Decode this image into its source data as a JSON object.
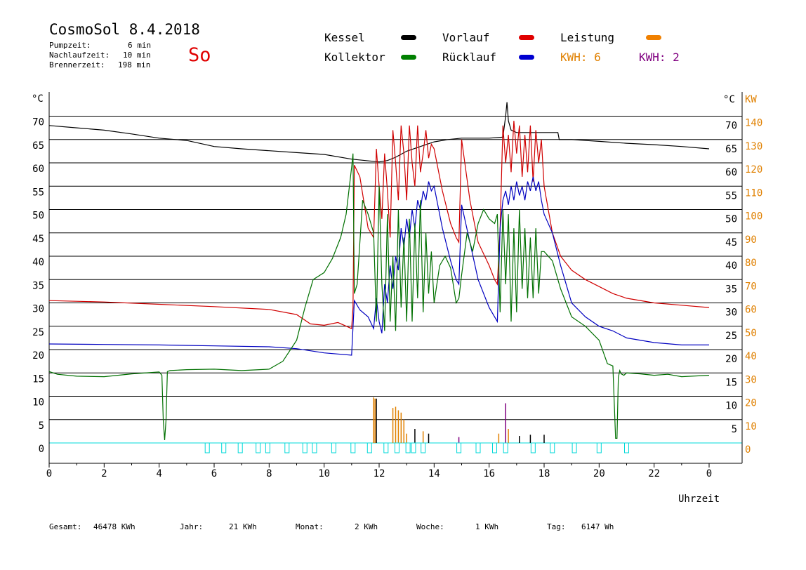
{
  "header": {
    "title": "CosmoSol 8.4.2018",
    "day": "So",
    "pump_label": "Pumpzeit:",
    "pump_value": "6 min",
    "nach_label": "Nachlaufzeit:",
    "nach_value": "10 min",
    "brenner_label": "Brennerzeit:",
    "brenner_value": "198 min"
  },
  "legend": {
    "kessel": {
      "label": "Kessel",
      "color": "#000000"
    },
    "vorlauf": {
      "label": "Vorlauf",
      "color": "#e00000"
    },
    "leistung": {
      "label": "Leistung",
      "color": "#f08000"
    },
    "kollektor": {
      "label": "Kollektor",
      "color": "#008000"
    },
    "ruecklauf": {
      "label": "Rücklauf",
      "color": "#0000d0"
    },
    "kwh1": {
      "label": "KWH: 6",
      "color": "#e08000"
    },
    "kwh2": {
      "label": "KWH: 2",
      "color": "#800080"
    }
  },
  "footer": {
    "gesamt_label": "Gesamt:",
    "gesamt_value": "46478 KWh",
    "jahr_label": "Jahr:",
    "jahr_value": "21 KWh",
    "monat_label": "Monat:",
    "monat_value": "2 KWh",
    "woche_label": "Woche:",
    "woche_value": "1 KWh",
    "tag_label": "Tag:",
    "tag_value": "6147 Wh"
  },
  "chart_data": {
    "type": "line",
    "xlabel": "Uhrzeit",
    "ylabel_left": "°C",
    "ylabel_right_1": "°C",
    "ylabel_right_2": "KW",
    "xlim": [
      0,
      24
    ],
    "ylim": [
      0,
      70
    ],
    "grid": true,
    "x_ticks": [
      "0",
      "2",
      "4",
      "6",
      "8",
      "10",
      "12",
      "14",
      "16",
      "18",
      "20",
      "22",
      "0"
    ],
    "y_ticks_left": [
      "70",
      "65",
      "60",
      "55",
      "50",
      "45",
      "40",
      "35",
      "30",
      "25",
      "20",
      "15",
      "10",
      "5",
      "0"
    ],
    "y_ticks_right_c": [
      "70",
      "65",
      "60",
      "55",
      "50",
      "45",
      "40",
      "35",
      "30",
      "25",
      "20",
      "15",
      "10",
      "5"
    ],
    "y_ticks_right_kw": [
      "140",
      "130",
      "120",
      "110",
      "100",
      "90",
      "80",
      "70",
      "60",
      "50",
      "40",
      "30",
      "20",
      "10",
      "0"
    ],
    "series": [
      {
        "name": "Kessel",
        "color": "#000000",
        "x": [
          0,
          1,
          2,
          3,
          4,
          5,
          6,
          7,
          8,
          9,
          10,
          11,
          11.5,
          12,
          12.3,
          12.6,
          13,
          13.5,
          14,
          14.5,
          15,
          16,
          16.5,
          16.6,
          16.65,
          16.7,
          16.8,
          17,
          18,
          18.5,
          18.55,
          19,
          20,
          21,
          22,
          23,
          24
        ],
        "y": [
          68,
          67.5,
          67,
          66.2,
          65.3,
          64.8,
          63.5,
          63,
          62.6,
          62.2,
          61.8,
          60.8,
          60.5,
          60.2,
          60.5,
          61.2,
          62.5,
          63.5,
          64.5,
          65,
          65.3,
          65.3,
          65.5,
          70,
          73,
          69,
          67,
          66.5,
          66.5,
          66.5,
          65,
          65,
          64.6,
          64.2,
          63.9,
          63.5,
          63
        ]
      },
      {
        "name": "Vorlauf",
        "color": "#d00000",
        "x": [
          0,
          2,
          4,
          6,
          8,
          9,
          9.5,
          10,
          10.5,
          11,
          11.05,
          11.1,
          11.3,
          11.6,
          11.8,
          11.9,
          12,
          12.1,
          12.2,
          12.3,
          12.4,
          12.5,
          12.6,
          12.7,
          12.8,
          12.9,
          13,
          13.1,
          13.2,
          13.3,
          13.4,
          13.5,
          13.6,
          13.7,
          13.8,
          13.9,
          14,
          14.3,
          14.6,
          14.8,
          14.9,
          15,
          15.3,
          15.6,
          16,
          16.2,
          16.3,
          16.4,
          16.5,
          16.6,
          16.7,
          16.8,
          16.9,
          17,
          17.1,
          17.2,
          17.3,
          17.4,
          17.5,
          17.6,
          17.7,
          17.8,
          17.9,
          18,
          18.3,
          18.6,
          19,
          19.5,
          20,
          20.5,
          21,
          22,
          23,
          24
        ],
        "y": [
          30.5,
          30.2,
          29.7,
          29.2,
          28.6,
          27.5,
          25.5,
          25.2,
          25.8,
          24.5,
          29,
          59.5,
          57,
          46,
          44,
          63,
          55,
          48,
          62,
          54,
          44,
          67,
          60,
          52,
          68,
          62,
          52,
          68,
          60,
          55,
          68,
          58,
          62,
          67,
          61,
          64,
          63,
          54,
          47,
          44,
          43,
          65,
          52,
          43,
          38,
          35,
          34,
          46,
          68,
          60,
          66,
          58,
          69,
          62,
          68,
          57,
          66,
          58,
          68,
          56,
          67,
          60,
          65,
          55,
          45,
          40,
          37,
          35,
          33.5,
          32,
          31,
          30,
          29.5,
          29
        ]
      },
      {
        "name": "Rücklauf",
        "color": "#0000c0",
        "x": [
          0,
          2,
          4,
          6,
          8,
          9,
          10,
          11,
          11.1,
          11.3,
          11.6,
          11.8,
          11.9,
          12,
          12.1,
          12.2,
          12.3,
          12.4,
          12.5,
          12.6,
          12.7,
          12.8,
          12.9,
          13,
          13.1,
          13.2,
          13.3,
          13.4,
          13.5,
          13.6,
          13.7,
          13.8,
          13.9,
          14,
          14.3,
          14.6,
          14.8,
          14.9,
          15,
          15.3,
          15.6,
          16,
          16.2,
          16.3,
          16.4,
          16.5,
          16.6,
          16.7,
          16.8,
          16.9,
          17,
          17.1,
          17.2,
          17.3,
          17.4,
          17.5,
          17.6,
          17.7,
          17.8,
          17.9,
          18,
          18.3,
          18.6,
          19,
          19.5,
          20,
          20.5,
          21,
          22,
          23,
          24
        ],
        "y": [
          21.2,
          21.1,
          21,
          20.8,
          20.6,
          20.2,
          19.3,
          18.8,
          30.5,
          28.5,
          27,
          24.5,
          31,
          26,
          23.5,
          34,
          30,
          38,
          33,
          40,
          37,
          46,
          42,
          48,
          44,
          50,
          46,
          52,
          50,
          54,
          52,
          56,
          54,
          55,
          46,
          39,
          35,
          34,
          51,
          43,
          35,
          29,
          27,
          26,
          46,
          52,
          54,
          51,
          55,
          52,
          56,
          53,
          55,
          52,
          56,
          54,
          57,
          54,
          56,
          52,
          49,
          45,
          38,
          30,
          27,
          25,
          24,
          22.5,
          21.5,
          21,
          21
        ]
      },
      {
        "name": "Kollektor",
        "color": "#007000",
        "x": [
          0,
          0.3,
          1,
          2,
          3,
          4,
          4.1,
          4.15,
          4.2,
          4.25,
          4.3,
          4.4,
          5,
          6,
          7,
          8,
          8.5,
          9,
          9.3,
          9.6,
          10,
          10.3,
          10.6,
          10.8,
          11,
          11.05,
          11.1,
          11.2,
          11.4,
          11.6,
          11.8,
          11.9,
          12,
          12.1,
          12.2,
          12.3,
          12.4,
          12.5,
          12.6,
          12.7,
          12.8,
          12.9,
          13,
          13.1,
          13.2,
          13.3,
          13.4,
          13.5,
          13.6,
          13.7,
          13.8,
          13.9,
          14,
          14.2,
          14.4,
          14.6,
          14.8,
          14.9,
          15,
          15.2,
          15.4,
          15.6,
          15.8,
          16,
          16.2,
          16.3,
          16.4,
          16.5,
          16.6,
          16.7,
          16.8,
          16.9,
          17,
          17.1,
          17.2,
          17.3,
          17.4,
          17.5,
          17.6,
          17.7,
          17.8,
          17.9,
          18,
          18.3,
          18.6,
          19,
          19.5,
          20,
          20.3,
          20.5,
          20.6,
          20.65,
          20.7,
          20.75,
          20.8,
          20.9,
          21,
          21.5,
          22,
          22.5,
          23,
          24
        ],
        "y": [
          15.3,
          14.7,
          14.3,
          14.2,
          14.8,
          15.2,
          14.5,
          5,
          0.6,
          5,
          15.3,
          15.5,
          15.7,
          15.8,
          15.5,
          15.8,
          17.5,
          22,
          29,
          35,
          36.5,
          39.5,
          44,
          49,
          59,
          62,
          32,
          34,
          52,
          49,
          45,
          26,
          55,
          34,
          24,
          49,
          26,
          40,
          24,
          50,
          29,
          44,
          26,
          48,
          26,
          47,
          31,
          52,
          28,
          45,
          32,
          41,
          30,
          38,
          40,
          37.5,
          30,
          31,
          36,
          45,
          41,
          47,
          50,
          48,
          47,
          49,
          28,
          50,
          34,
          49,
          26,
          46,
          28,
          50,
          33,
          46,
          31,
          44,
          31,
          46,
          32,
          41,
          41,
          39,
          33,
          27,
          25,
          22,
          17,
          16.5,
          1,
          1,
          14,
          15.5,
          14.8,
          14.5,
          15,
          14.8,
          14.5,
          14.7,
          14.2,
          14.5
        ]
      }
    ],
    "leistung_bars": [
      {
        "x": 11.8,
        "kw": 19.5,
        "color": "#e08000"
      },
      {
        "x": 11.85,
        "kw": 19,
        "color": "#e08000"
      },
      {
        "x": 11.9,
        "kw": 19,
        "color": "#000000"
      },
      {
        "x": 12.5,
        "kw": 15,
        "color": "#e08000"
      },
      {
        "x": 12.6,
        "kw": 15.5,
        "color": "#e08000"
      },
      {
        "x": 12.7,
        "kw": 14,
        "color": "#e08000"
      },
      {
        "x": 12.8,
        "kw": 13,
        "color": "#e08000"
      },
      {
        "x": 12.9,
        "kw": 10,
        "color": "#e08000"
      },
      {
        "x": 13.0,
        "kw": 4,
        "color": "#e08000"
      },
      {
        "x": 13.3,
        "kw": 6,
        "color": "#000000"
      },
      {
        "x": 13.6,
        "kw": 5,
        "color": "#e08000"
      },
      {
        "x": 13.8,
        "kw": 4,
        "color": "#000000"
      },
      {
        "x": 14.9,
        "kw": 2.5,
        "color": "#800080"
      },
      {
        "x": 16.35,
        "kw": 4,
        "color": "#e08000"
      },
      {
        "x": 16.6,
        "kw": 17,
        "color": "#800080"
      },
      {
        "x": 16.7,
        "kw": 6,
        "color": "#e08000"
      },
      {
        "x": 17.1,
        "kw": 3,
        "color": "#000000"
      },
      {
        "x": 17.5,
        "kw": 3.5,
        "color": "#000000"
      },
      {
        "x": 18.0,
        "kw": 3.5,
        "color": "#000000"
      }
    ],
    "pump_markers": [
      5.75,
      6.35,
      6.95,
      7.6,
      7.95,
      8.65,
      9.3,
      9.65,
      10.35,
      11.05,
      11.65,
      12.25,
      12.65,
      13.05,
      13.25,
      13.6,
      14.9,
      15.6,
      16.2,
      16.6,
      17.6,
      18.3,
      19.1,
      20.0,
      21.0
    ]
  }
}
